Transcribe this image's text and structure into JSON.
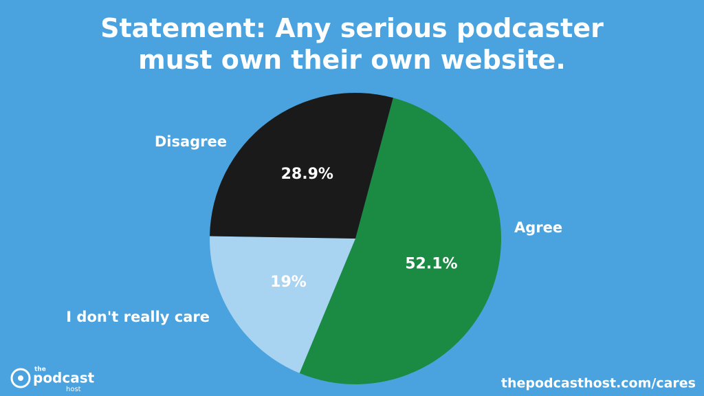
{
  "chart_data": {
    "type": "pie",
    "title": "Statement: Any serious podcaster must own their own website.",
    "categories": [
      "Agree",
      "I don't really care",
      "Disagree"
    ],
    "values": [
      52.1,
      19,
      28.9
    ],
    "value_labels": [
      "52.1%",
      "19%",
      "28.9%"
    ],
    "colors": [
      "#1b8a42",
      "#a8d4f2",
      "#1a1a1a"
    ],
    "start_angle": 15
  },
  "footer": {
    "logo": {
      "small": "the",
      "main": "podcast",
      "sub": "host"
    },
    "url": "thepodcasthost.com/cares"
  }
}
